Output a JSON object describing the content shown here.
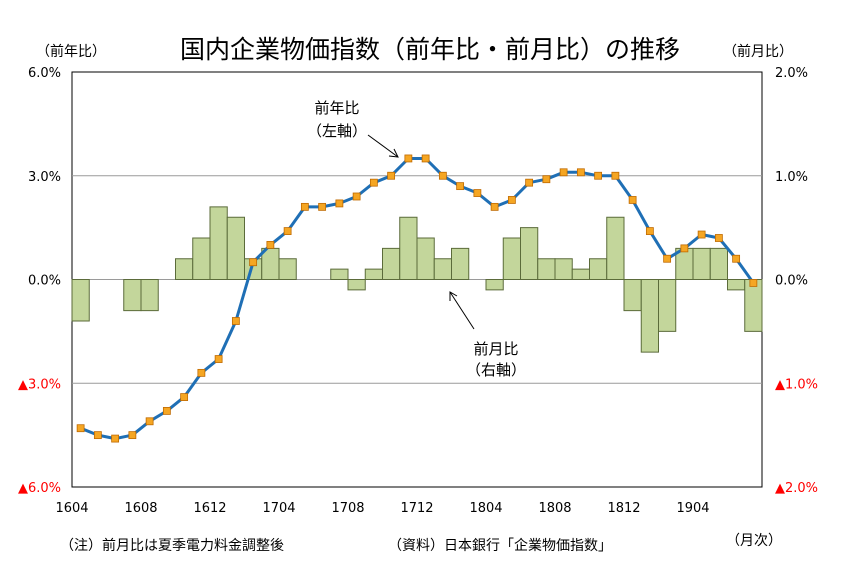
{
  "chart_data": {
    "type": "bar+line",
    "title": "国内企業物価指数（前年比・前月比）の推移",
    "left_axis": {
      "unit_label": "（前年比）",
      "ticks": [
        "6.0%",
        "3.0%",
        "0.0%",
        "▲3.0%",
        "▲6.0%"
      ],
      "tick_values": [
        6,
        3,
        0,
        -3,
        -6
      ],
      "ylim": [
        -6,
        6
      ]
    },
    "right_axis": {
      "unit_label": "（前月比）",
      "ticks": [
        "2.0%",
        "1.0%",
        "0.0%",
        "▲1.0%",
        "▲2.0%"
      ],
      "tick_values": [
        2,
        1,
        0,
        -1,
        -2
      ],
      "ylim": [
        -2,
        2
      ]
    },
    "x_tick_labels": [
      "1604",
      "1608",
      "1612",
      "1704",
      "1708",
      "1712",
      "1804",
      "1808",
      "1812",
      "1904"
    ],
    "x_unit_label": "（月次）",
    "x": [
      "1604",
      "1605",
      "1606",
      "1607",
      "1608",
      "1609",
      "1610",
      "1611",
      "1612",
      "1701",
      "1702",
      "1703",
      "1704",
      "1705",
      "1706",
      "1707",
      "1708",
      "1709",
      "1710",
      "1711",
      "1712",
      "1801",
      "1802",
      "1803",
      "1804",
      "1805",
      "1806",
      "1807",
      "1808",
      "1809",
      "1810",
      "1811",
      "1812",
      "1901",
      "1902",
      "1903",
      "1904",
      "1905",
      "1906",
      "1907"
    ],
    "series": [
      {
        "name": "前年比",
        "axis": "left",
        "kind": "line",
        "color": "#1f6fb5",
        "marker_color": "#f5a623",
        "values": [
          -4.3,
          -4.5,
          -4.6,
          -4.5,
          -4.1,
          -3.8,
          -3.4,
          -2.7,
          -2.3,
          -1.2,
          0.5,
          1.0,
          1.4,
          2.1,
          2.1,
          2.2,
          2.4,
          2.8,
          3.0,
          3.5,
          3.5,
          3.0,
          2.7,
          2.5,
          2.1,
          2.3,
          2.8,
          2.9,
          3.1,
          3.1,
          3.0,
          3.0,
          2.3,
          1.4,
          0.6,
          0.9,
          1.3,
          1.2,
          0.6,
          -0.1
        ]
      },
      {
        "name": "前月比",
        "axis": "right",
        "kind": "bar",
        "color": "#c3d69b",
        "border": "#5b6b3a",
        "values": [
          -0.4,
          0.0,
          0.0,
          -0.3,
          -0.3,
          0.0,
          0.2,
          0.4,
          0.7,
          0.6,
          0.2,
          0.3,
          0.2,
          0.0,
          0.0,
          0.1,
          -0.1,
          0.1,
          0.3,
          0.6,
          0.4,
          0.2,
          0.3,
          0.0,
          -0.1,
          0.4,
          0.5,
          0.2,
          0.2,
          0.1,
          0.2,
          0.6,
          -0.3,
          -0.7,
          -0.5,
          0.3,
          0.3,
          0.3,
          -0.1,
          -0.5
        ]
      }
    ],
    "annotations": [
      {
        "id": "line",
        "text_line1": "前年比",
        "text_line2": "（左軸）"
      },
      {
        "id": "bar",
        "text_line1": "前月比",
        "text_line2": "（右軸）"
      }
    ],
    "grid": true,
    "red_color": "#ff0000"
  },
  "footer": {
    "note": "（注）前月比は夏季電力料金調整後",
    "source": "（資料）日本銀行「企業物価指数」"
  }
}
